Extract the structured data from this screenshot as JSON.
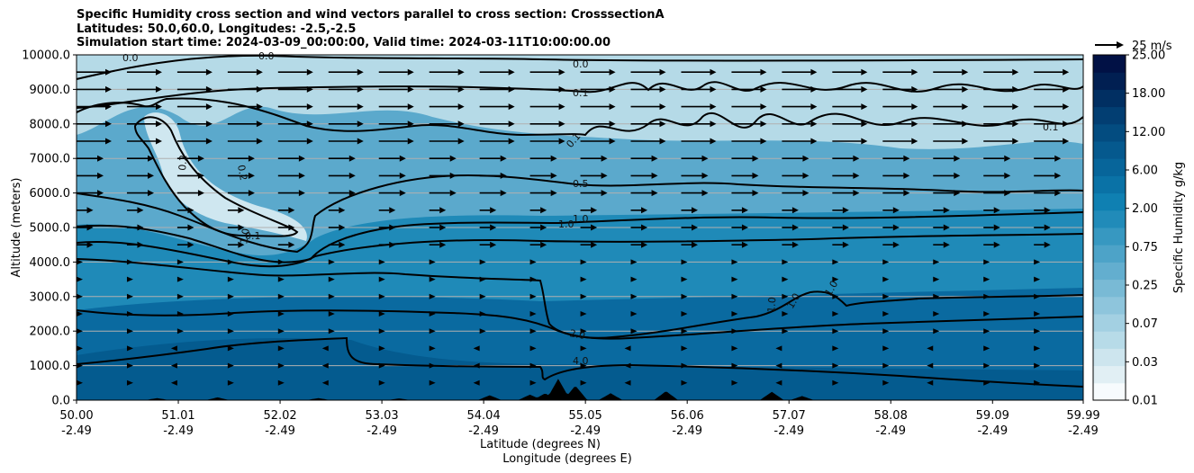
{
  "chart_data": {
    "type": "contour",
    "title_lines": [
      "Specific Humidity cross section and wind vectors parallel to cross section: CrosssectionA",
      "Latitudes: 50.0,60.0, Longitudes: -2.5,-2.5",
      "Simulation start time: 2024-03-09_00:00:00, Valid time: 2024-03-11T10:00:00.00"
    ],
    "xlabel_lat": "Latitude (degrees N)",
    "xlabel_lon": "Longitude (degrees E)",
    "ylabel": "Altitude (meters)",
    "x_range": [
      50.0,
      59.99
    ],
    "ylim": [
      0,
      10000
    ],
    "xticks": [
      {
        "lat": "50.00",
        "lon": "-2.49",
        "value": 50.0
      },
      {
        "lat": "51.01",
        "lon": "-2.49",
        "value": 51.01
      },
      {
        "lat": "52.02",
        "lon": "-2.49",
        "value": 52.02
      },
      {
        "lat": "53.03",
        "lon": "-2.49",
        "value": 53.03
      },
      {
        "lat": "54.04",
        "lon": "-2.49",
        "value": 54.04
      },
      {
        "lat": "55.05",
        "lon": "-2.49",
        "value": 55.05
      },
      {
        "lat": "56.06",
        "lon": "-2.49",
        "value": 56.06
      },
      {
        "lat": "57.07",
        "lon": "-2.49",
        "value": 57.07
      },
      {
        "lat": "58.08",
        "lon": "-2.49",
        "value": 58.08
      },
      {
        "lat": "59.09",
        "lon": "-2.49",
        "value": 59.09
      },
      {
        "lat": "59.99",
        "lon": "-2.49",
        "value": 59.99
      }
    ],
    "yticks": [
      "0.0",
      "1000.0",
      "2000.0",
      "3000.0",
      "4000.0",
      "5000.0",
      "6000.0",
      "7000.0",
      "8000.0",
      "9000.0",
      "10000.0"
    ],
    "grid": "horizontal",
    "colorbar": {
      "label": "Specific Humidity g/kg",
      "ticks": [
        "0.01",
        "0.03",
        "0.07",
        "0.25",
        "0.75",
        "2.00",
        "6.00",
        "12.00",
        "18.00",
        "25.00"
      ],
      "colors": [
        "#f7fbfd",
        "#e1eff4",
        "#cde5ee",
        "#b7dbe8",
        "#a3d0e2",
        "#8ec5dc",
        "#79bad5",
        "#63aecf",
        "#4da3c8",
        "#3798c1",
        "#218bb9",
        "#0f80b2",
        "#0a72a6",
        "#07659a",
        "#05598e",
        "#034c80",
        "#023e72",
        "#012f62",
        "#011f52",
        "#011145"
      ]
    },
    "contour_labels": [
      "0.0",
      "0.0",
      "0.0",
      "0.1",
      "0.1",
      "0.2",
      "0.2",
      "0.1",
      "0.1",
      "0.5",
      "1.0",
      "1.0",
      "1.0",
      "1.0",
      "1.0",
      "1.0",
      "2.0",
      "4.0"
    ],
    "wind_reference": {
      "label": "25 m/s",
      "speed": 25
    },
    "terrain_peaks": [
      {
        "lat": 50.8,
        "height": 60
      },
      {
        "lat": 51.4,
        "height": 80
      },
      {
        "lat": 52.4,
        "height": 60
      },
      {
        "lat": 53.2,
        "height": 50
      },
      {
        "lat": 54.1,
        "height": 140
      },
      {
        "lat": 54.5,
        "height": 160
      },
      {
        "lat": 54.65,
        "height": 200
      },
      {
        "lat": 54.78,
        "height": 620
      },
      {
        "lat": 54.95,
        "height": 420
      },
      {
        "lat": 55.3,
        "height": 200
      },
      {
        "lat": 55.85,
        "height": 260
      },
      {
        "lat": 56.9,
        "height": 240
      },
      {
        "lat": 57.2,
        "height": 120
      }
    ]
  }
}
